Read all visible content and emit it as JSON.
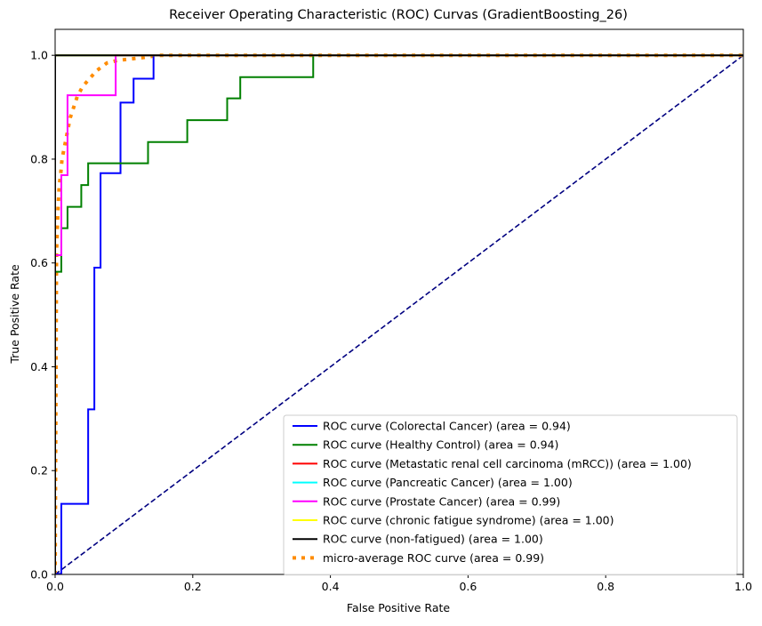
{
  "chart_data": {
    "type": "line",
    "title": "Receiver Operating Characteristic (ROC) Curvas (GradientBoosting_26)",
    "xlabel": "False Positive Rate",
    "ylabel": "True Positive Rate",
    "xlim": [
      0,
      1
    ],
    "ylim": [
      0,
      1.05
    ],
    "xticks": [
      0,
      0.2,
      0.4,
      0.6,
      0.8,
      1.0
    ],
    "xtick_labels": [
      "0.0",
      "0.2",
      "0.4",
      "0.6",
      "0.8",
      "1.0"
    ],
    "yticks": [
      0,
      0.2,
      0.4,
      0.6,
      0.8,
      1.0
    ],
    "ytick_labels": [
      "0.0",
      "0.2",
      "0.4",
      "0.6",
      "0.8",
      "1.0"
    ],
    "grid": false,
    "legend_position": "lower-right",
    "series": [
      {
        "name": "ROC curve (Colorectal Cancer) (area = 0.94)",
        "color": "#0000ff",
        "style": "solid",
        "x": [
          0,
          0,
          0.009,
          0.009,
          0.048,
          0.048,
          0.057,
          0.057,
          0.066,
          0.066,
          0.095,
          0.095,
          0.114,
          0.114,
          0.143,
          0.143,
          1
        ],
        "y": [
          0,
          0.001,
          0.001,
          0.136,
          0.136,
          0.318,
          0.318,
          0.591,
          0.591,
          0.773,
          0.773,
          0.909,
          0.909,
          0.955,
          0.955,
          1,
          1
        ]
      },
      {
        "name": "ROC curve (Healthy Control) (area = 0.94)",
        "color": "#008000",
        "style": "solid",
        "x": [
          0,
          0,
          0.009,
          0.009,
          0.018,
          0.018,
          0.038,
          0.038,
          0.048,
          0.048,
          0.135,
          0.135,
          0.192,
          0.192,
          0.25,
          0.25,
          0.269,
          0.269,
          0.375,
          0.375,
          1
        ],
        "y": [
          0,
          0.583,
          0.583,
          0.667,
          0.667,
          0.708,
          0.708,
          0.75,
          0.75,
          0.792,
          0.792,
          0.833,
          0.833,
          0.875,
          0.875,
          0.917,
          0.917,
          0.958,
          0.958,
          1,
          1
        ]
      },
      {
        "name": "ROC curve (Metastatic renal cell carcinoma (mRCC)) (area = 1.00)",
        "color": "#ff0000",
        "style": "solid",
        "x": [
          0,
          0,
          1
        ],
        "y": [
          0,
          1,
          1
        ]
      },
      {
        "name": "ROC curve (Pancreatic Cancer) (area = 1.00)",
        "color": "#00ffff",
        "style": "solid",
        "x": [
          0,
          0,
          1
        ],
        "y": [
          0,
          1,
          1
        ]
      },
      {
        "name": "ROC curve (Prostate Cancer) (area = 0.99)",
        "color": "#ff00ff",
        "style": "solid",
        "x": [
          0,
          0,
          0.009,
          0.009,
          0.018,
          0.018,
          0.088,
          0.088,
          1
        ],
        "y": [
          0,
          0.615,
          0.615,
          0.769,
          0.769,
          0.923,
          0.923,
          1,
          1
        ]
      },
      {
        "name": "ROC curve (chronic fatigue syndrome) (area = 1.00)",
        "color": "#ffff00",
        "style": "solid",
        "x": [
          0,
          0,
          1
        ],
        "y": [
          0,
          1,
          1
        ]
      },
      {
        "name": "ROC curve (non-fatigued) (area = 1.00)",
        "color": "#000000",
        "style": "solid",
        "x": [
          0,
          0,
          1
        ],
        "y": [
          0,
          1,
          1
        ]
      },
      {
        "name": "micro-average ROC curve (area = 0.99)",
        "color": "#ff8c00",
        "style": "dotted",
        "x": [
          0,
          0.002,
          0.004,
          0.006,
          0.008,
          0.01,
          0.013,
          0.016,
          0.019,
          0.022,
          0.027,
          0.032,
          0.04,
          0.05,
          0.06,
          0.075,
          0.09,
          0.11,
          0.13,
          0.15,
          1
        ],
        "y": [
          0,
          0.62,
          0.7,
          0.75,
          0.77,
          0.8,
          0.82,
          0.84,
          0.86,
          0.88,
          0.9,
          0.92,
          0.94,
          0.955,
          0.97,
          0.985,
          0.99,
          0.993,
          0.996,
          1,
          1
        ]
      },
      {
        "name": "",
        "color": "#000080",
        "style": "dashed",
        "x": [
          0,
          1
        ],
        "y": [
          0,
          1
        ]
      }
    ]
  }
}
